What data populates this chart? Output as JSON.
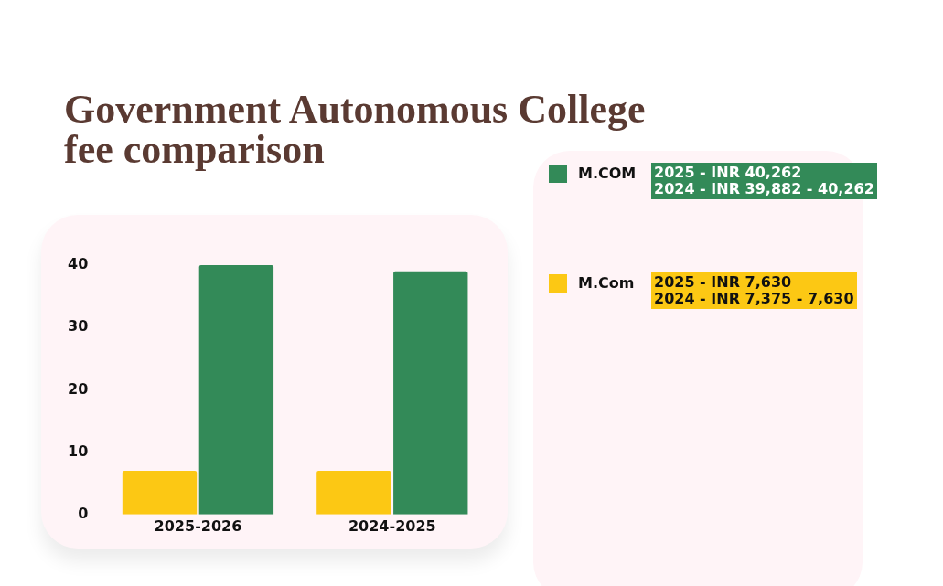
{
  "chart_data": {
    "type": "bar",
    "title": "Government Autonomous College fee comparison",
    "categories": [
      "2025-2026",
      "2024-2025"
    ],
    "series": [
      {
        "name": "M.Com",
        "color": "#fcc814",
        "values": [
          7,
          7
        ]
      },
      {
        "name": "M.COM",
        "color": "#338a58",
        "values": [
          40,
          39
        ]
      }
    ],
    "ylim": [
      0,
      40
    ],
    "yticks": [
      0,
      10,
      20,
      30,
      40
    ],
    "grid": false,
    "legend": "right",
    "annotations": [
      "2025 - INR 40,262",
      "2024 - INR 39,882 - 40,262",
      "2025 - INR 7,630",
      "2024 - INR 7,375 - 7,630"
    ]
  }
}
